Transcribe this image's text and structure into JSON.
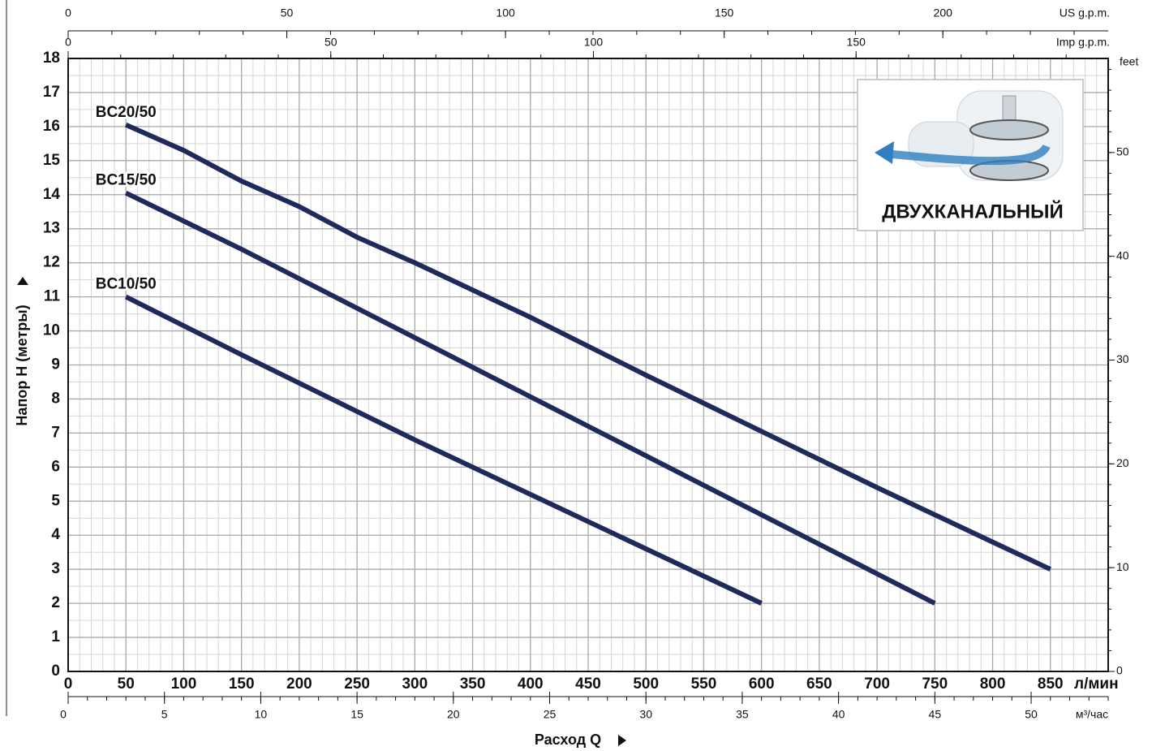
{
  "chart_data": {
    "type": "line",
    "xlabel": "Расход Q",
    "ylabel": "Напор H (метры)",
    "x_unit": "л/мин",
    "xlim": [
      0,
      900
    ],
    "xticks": [
      0,
      50,
      100,
      150,
      200,
      250,
      300,
      350,
      400,
      450,
      500,
      550,
      600,
      650,
      700,
      750,
      800,
      850
    ],
    "ylim": [
      0,
      18
    ],
    "yticks": [
      0,
      1,
      2,
      3,
      4,
      5,
      6,
      7,
      8,
      9,
      10,
      11,
      12,
      13,
      14,
      15,
      16,
      17,
      18
    ],
    "grid": true,
    "series": [
      {
        "name": "BC20/50",
        "color": "#1f2a5c",
        "x": [
          50,
          100,
          150,
          200,
          250,
          300,
          400,
          500,
          600,
          700,
          800,
          850
        ],
        "values": [
          16.05,
          15.3,
          14.4,
          13.65,
          12.75,
          12.0,
          10.4,
          8.7,
          7.05,
          5.4,
          3.8,
          3.0
        ]
      },
      {
        "name": "BC15/50",
        "color": "#1f2a5c",
        "x": [
          50,
          150,
          300,
          450,
          600,
          750
        ],
        "values": [
          14.05,
          12.4,
          9.8,
          7.2,
          4.6,
          2.0
        ]
      },
      {
        "name": "BC10/50",
        "color": "#1f2a5c",
        "x": [
          50,
          150,
          300,
          450,
          600
        ],
        "values": [
          11.0,
          9.3,
          6.8,
          4.4,
          2.0
        ]
      }
    ],
    "x2_axes": [
      {
        "label": "US g.p.m.",
        "lim": [
          0,
          237.8
        ],
        "ticks": [
          0,
          50,
          100,
          150,
          200
        ]
      },
      {
        "label": "Imp g.p.m.",
        "lim": [
          0,
          198
        ],
        "ticks": [
          0,
          50,
          100,
          150
        ]
      },
      {
        "label": "м³/час",
        "lim": [
          0,
          54
        ],
        "ticks": [
          0,
          5,
          10,
          15,
          20,
          25,
          30,
          35,
          40,
          45,
          50
        ]
      }
    ],
    "y2label": "feet",
    "y2lim": [
      0,
      59.06
    ],
    "y2ticks": [
      0,
      10,
      20,
      30,
      40,
      50
    ],
    "inset_label": "ДВУХКАНАЛЬНЫЙ"
  }
}
